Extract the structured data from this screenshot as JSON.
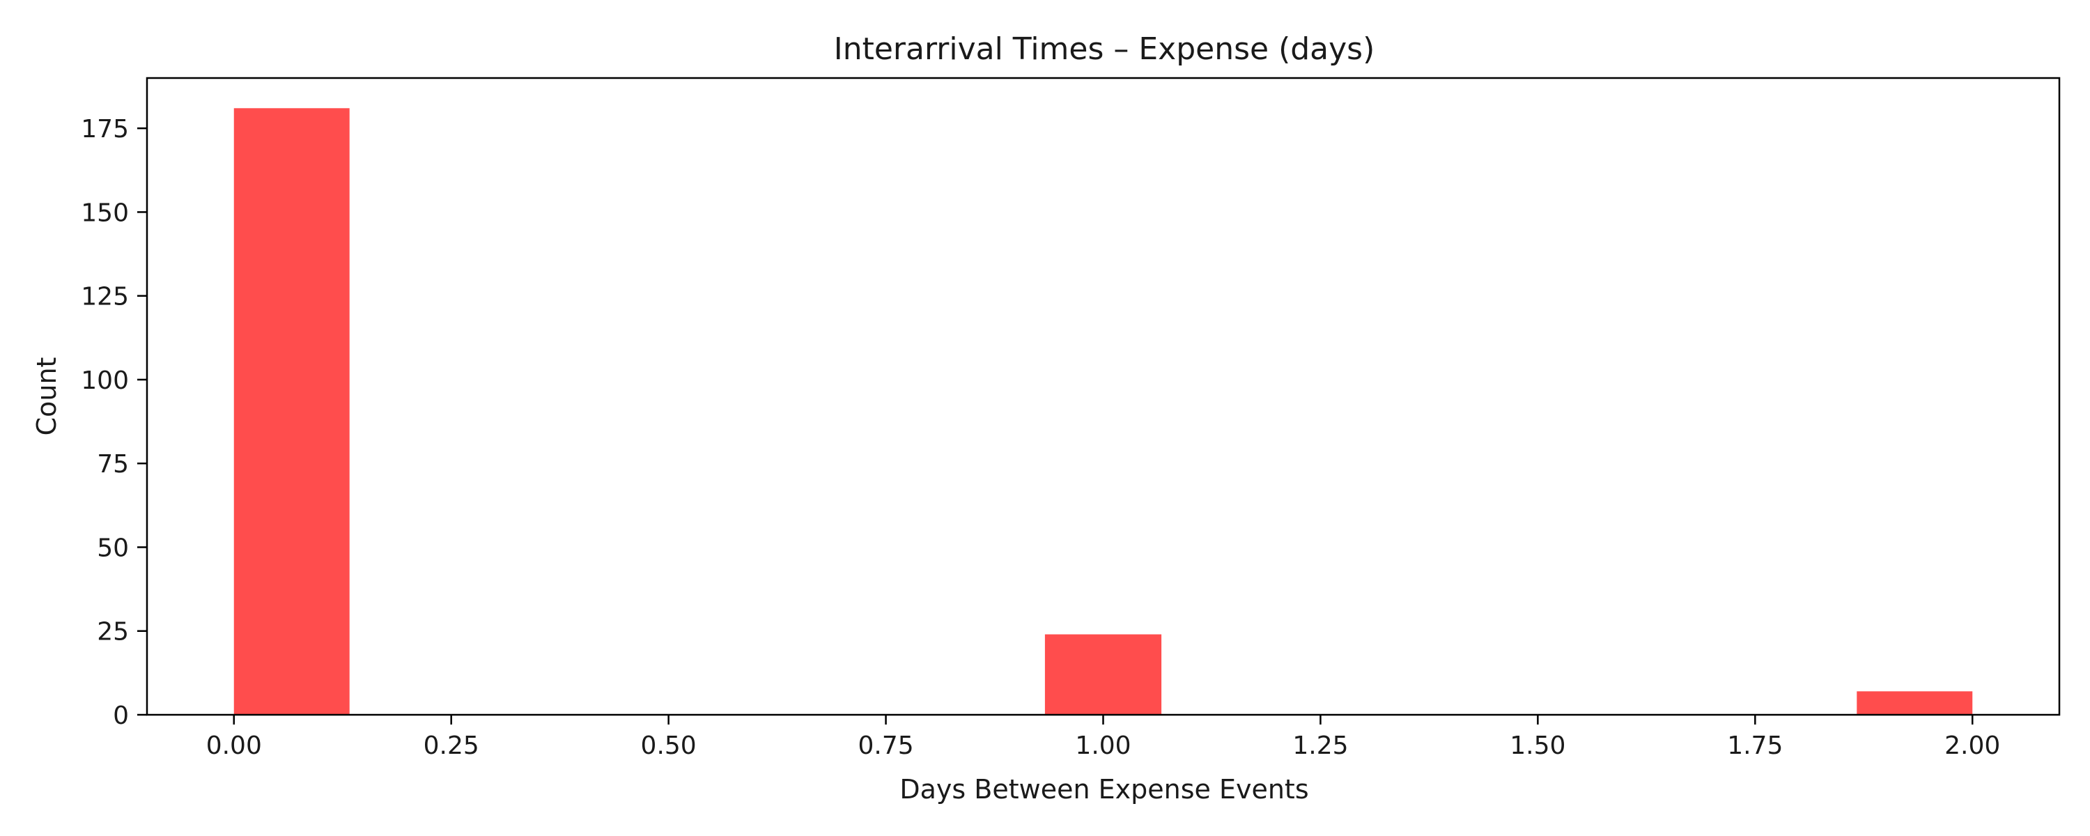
{
  "chart_data": {
    "type": "bar",
    "title": "Interarrival Times – Expense (days)",
    "xlabel": "Days Between Expense Events",
    "ylabel": "Count",
    "bins": [
      {
        "x_start": 0.0,
        "x_end": 0.133,
        "count": 181
      },
      {
        "x_start": 0.933,
        "x_end": 1.067,
        "count": 24
      },
      {
        "x_start": 1.867,
        "x_end": 2.0,
        "count": 7
      }
    ],
    "xlim": [
      -0.1,
      2.1
    ],
    "ylim": [
      0,
      190
    ],
    "xticks": [
      0.0,
      0.25,
      0.5,
      0.75,
      1.0,
      1.25,
      1.5,
      1.75,
      2.0
    ],
    "xtick_labels": [
      "0.00",
      "0.25",
      "0.50",
      "0.75",
      "1.00",
      "1.25",
      "1.50",
      "1.75",
      "2.00"
    ],
    "yticks": [
      0,
      25,
      50,
      75,
      100,
      125,
      150,
      175
    ],
    "ytick_labels": [
      "0",
      "25",
      "50",
      "75",
      "100",
      "125",
      "150",
      "175"
    ],
    "bar_color": "#ff4d4d",
    "grid": false,
    "legend": "none"
  }
}
